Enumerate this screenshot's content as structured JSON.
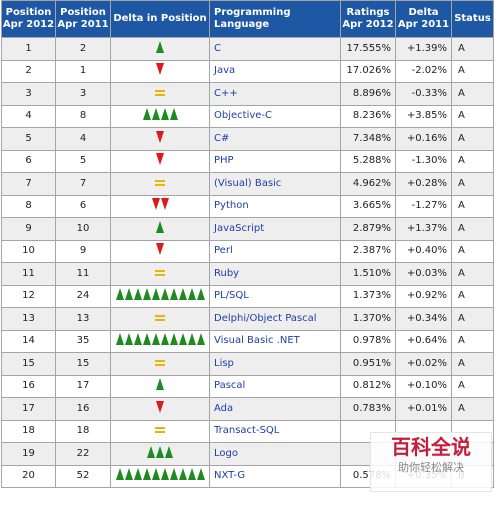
{
  "table": {
    "headers": {
      "pos2012": "Position\nApr 2012",
      "pos2011": "Position\nApr 2011",
      "delta_pos": "Delta in Position",
      "lang": "Programming Language",
      "ratings": "Ratings\nApr 2012",
      "delta": "Delta\nApr 2011",
      "status": "Status"
    },
    "rows": [
      {
        "p12": "1",
        "p11": "2",
        "dir": "up",
        "n": 1,
        "lang": "C",
        "rating": "17.555%",
        "delta": "+1.39%",
        "status": "A"
      },
      {
        "p12": "2",
        "p11": "1",
        "dir": "down",
        "n": 1,
        "lang": "Java",
        "rating": "17.026%",
        "delta": "-2.02%",
        "status": "A"
      },
      {
        "p12": "3",
        "p11": "3",
        "dir": "same",
        "n": 1,
        "lang": "C++",
        "rating": "8.896%",
        "delta": "-0.33%",
        "status": "A"
      },
      {
        "p12": "4",
        "p11": "8",
        "dir": "up",
        "n": 4,
        "lang": "Objective-C",
        "rating": "8.236%",
        "delta": "+3.85%",
        "status": "A"
      },
      {
        "p12": "5",
        "p11": "4",
        "dir": "down",
        "n": 1,
        "lang": "C#",
        "rating": "7.348%",
        "delta": "+0.16%",
        "status": "A"
      },
      {
        "p12": "6",
        "p11": "5",
        "dir": "down",
        "n": 1,
        "lang": "PHP",
        "rating": "5.288%",
        "delta": "-1.30%",
        "status": "A"
      },
      {
        "p12": "7",
        "p11": "7",
        "dir": "same",
        "n": 1,
        "lang": "(Visual) Basic",
        "rating": "4.962%",
        "delta": "+0.28%",
        "status": "A"
      },
      {
        "p12": "8",
        "p11": "6",
        "dir": "down",
        "n": 2,
        "lang": "Python",
        "rating": "3.665%",
        "delta": "-1.27%",
        "status": "A"
      },
      {
        "p12": "9",
        "p11": "10",
        "dir": "up",
        "n": 1,
        "lang": "JavaScript",
        "rating": "2.879%",
        "delta": "+1.37%",
        "status": "A"
      },
      {
        "p12": "10",
        "p11": "9",
        "dir": "down",
        "n": 1,
        "lang": "Perl",
        "rating": "2.387%",
        "delta": "+0.40%",
        "status": "A"
      },
      {
        "p12": "11",
        "p11": "11",
        "dir": "same",
        "n": 1,
        "lang": "Ruby",
        "rating": "1.510%",
        "delta": "+0.03%",
        "status": "A"
      },
      {
        "p12": "12",
        "p11": "24",
        "dir": "up",
        "n": 10,
        "lang": "PL/SQL",
        "rating": "1.373%",
        "delta": "+0.92%",
        "status": "A"
      },
      {
        "p12": "13",
        "p11": "13",
        "dir": "same",
        "n": 1,
        "lang": "Delphi/Object Pascal",
        "rating": "1.370%",
        "delta": "+0.34%",
        "status": "A"
      },
      {
        "p12": "14",
        "p11": "35",
        "dir": "up",
        "n": 10,
        "lang": "Visual Basic .NET",
        "rating": "0.978%",
        "delta": "+0.64%",
        "status": "A"
      },
      {
        "p12": "15",
        "p11": "15",
        "dir": "same",
        "n": 1,
        "lang": "Lisp",
        "rating": "0.951%",
        "delta": "+0.02%",
        "status": "A"
      },
      {
        "p12": "16",
        "p11": "17",
        "dir": "up",
        "n": 1,
        "lang": "Pascal",
        "rating": "0.812%",
        "delta": "+0.10%",
        "status": "A"
      },
      {
        "p12": "17",
        "p11": "16",
        "dir": "down",
        "n": 1,
        "lang": "Ada",
        "rating": "0.783%",
        "delta": "+0.01%",
        "status": "A"
      },
      {
        "p12": "18",
        "p11": "18",
        "dir": "same",
        "n": 1,
        "lang": "Transact-SQL",
        "rating": "",
        "delta": "",
        "status": ""
      },
      {
        "p12": "19",
        "p11": "22",
        "dir": "up",
        "n": 3,
        "lang": "Logo",
        "rating": "",
        "delta": "",
        "status": ""
      },
      {
        "p12": "20",
        "p11": "52",
        "dir": "up",
        "n": 10,
        "lang": "NXT-G",
        "rating": "0.578%",
        "delta": "+0.35%",
        "status": "B"
      }
    ]
  },
  "watermark": {
    "title": "百科全说",
    "subtitle": "助你轻松解决"
  },
  "colors": {
    "header_bg": "#1e57a4",
    "up": "#1f8a1f",
    "down": "#e01818",
    "same": "#f2b300",
    "link": "#1f3ea8"
  }
}
